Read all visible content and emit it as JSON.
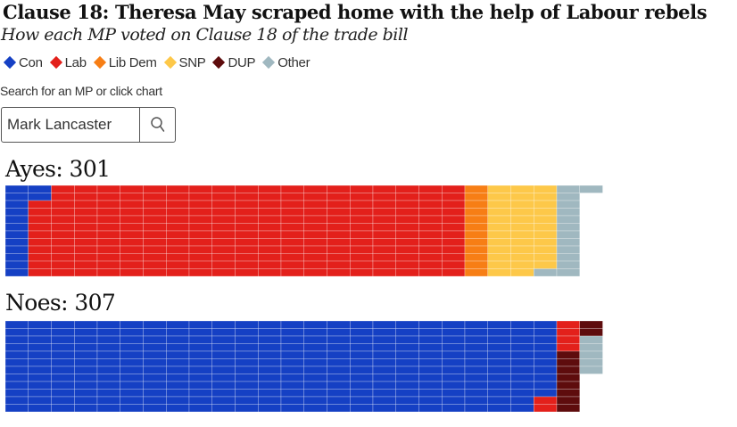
{
  "title": "Clause 18: Theresa May scraped home with the help of Labour rebels",
  "subtitle": "How each MP voted on Clause 18 of the trade bill",
  "legend": [
    {
      "label": "Con",
      "color": "#1540c4"
    },
    {
      "label": "Lab",
      "color": "#e3201b"
    },
    {
      "label": "Lib Dem",
      "color": "#f77e15"
    },
    {
      "label": "SNP",
      "color": "#fdc849"
    },
    {
      "label": "DUP",
      "color": "#5e0c0d"
    },
    {
      "label": "Other",
      "color": "#a0b8c0"
    }
  ],
  "search": {
    "label": "Search for an MP or click chart",
    "value": "Mark Lancaster",
    "icon": "search-icon"
  },
  "chart_data": {
    "type": "waffle",
    "rows_per_column": 12,
    "series": [
      {
        "name": "Ayes",
        "label": "Ayes: 301",
        "total": 301,
        "parties": [
          {
            "party": "Con",
            "value": 14
          },
          {
            "party": "Lab",
            "value": 226
          },
          {
            "party": "Lib Dem",
            "value": 12
          },
          {
            "party": "SNP",
            "value": 35
          },
          {
            "party": "Other",
            "value": 14
          }
        ]
      },
      {
        "name": "Noes",
        "label": "Noes: 307",
        "total": 307,
        "parties": [
          {
            "party": "Con",
            "value": 286
          },
          {
            "party": "Lab",
            "value": 6
          },
          {
            "party": "DUP",
            "value": 10
          },
          {
            "party": "Other",
            "value": 5
          }
        ]
      }
    ]
  }
}
